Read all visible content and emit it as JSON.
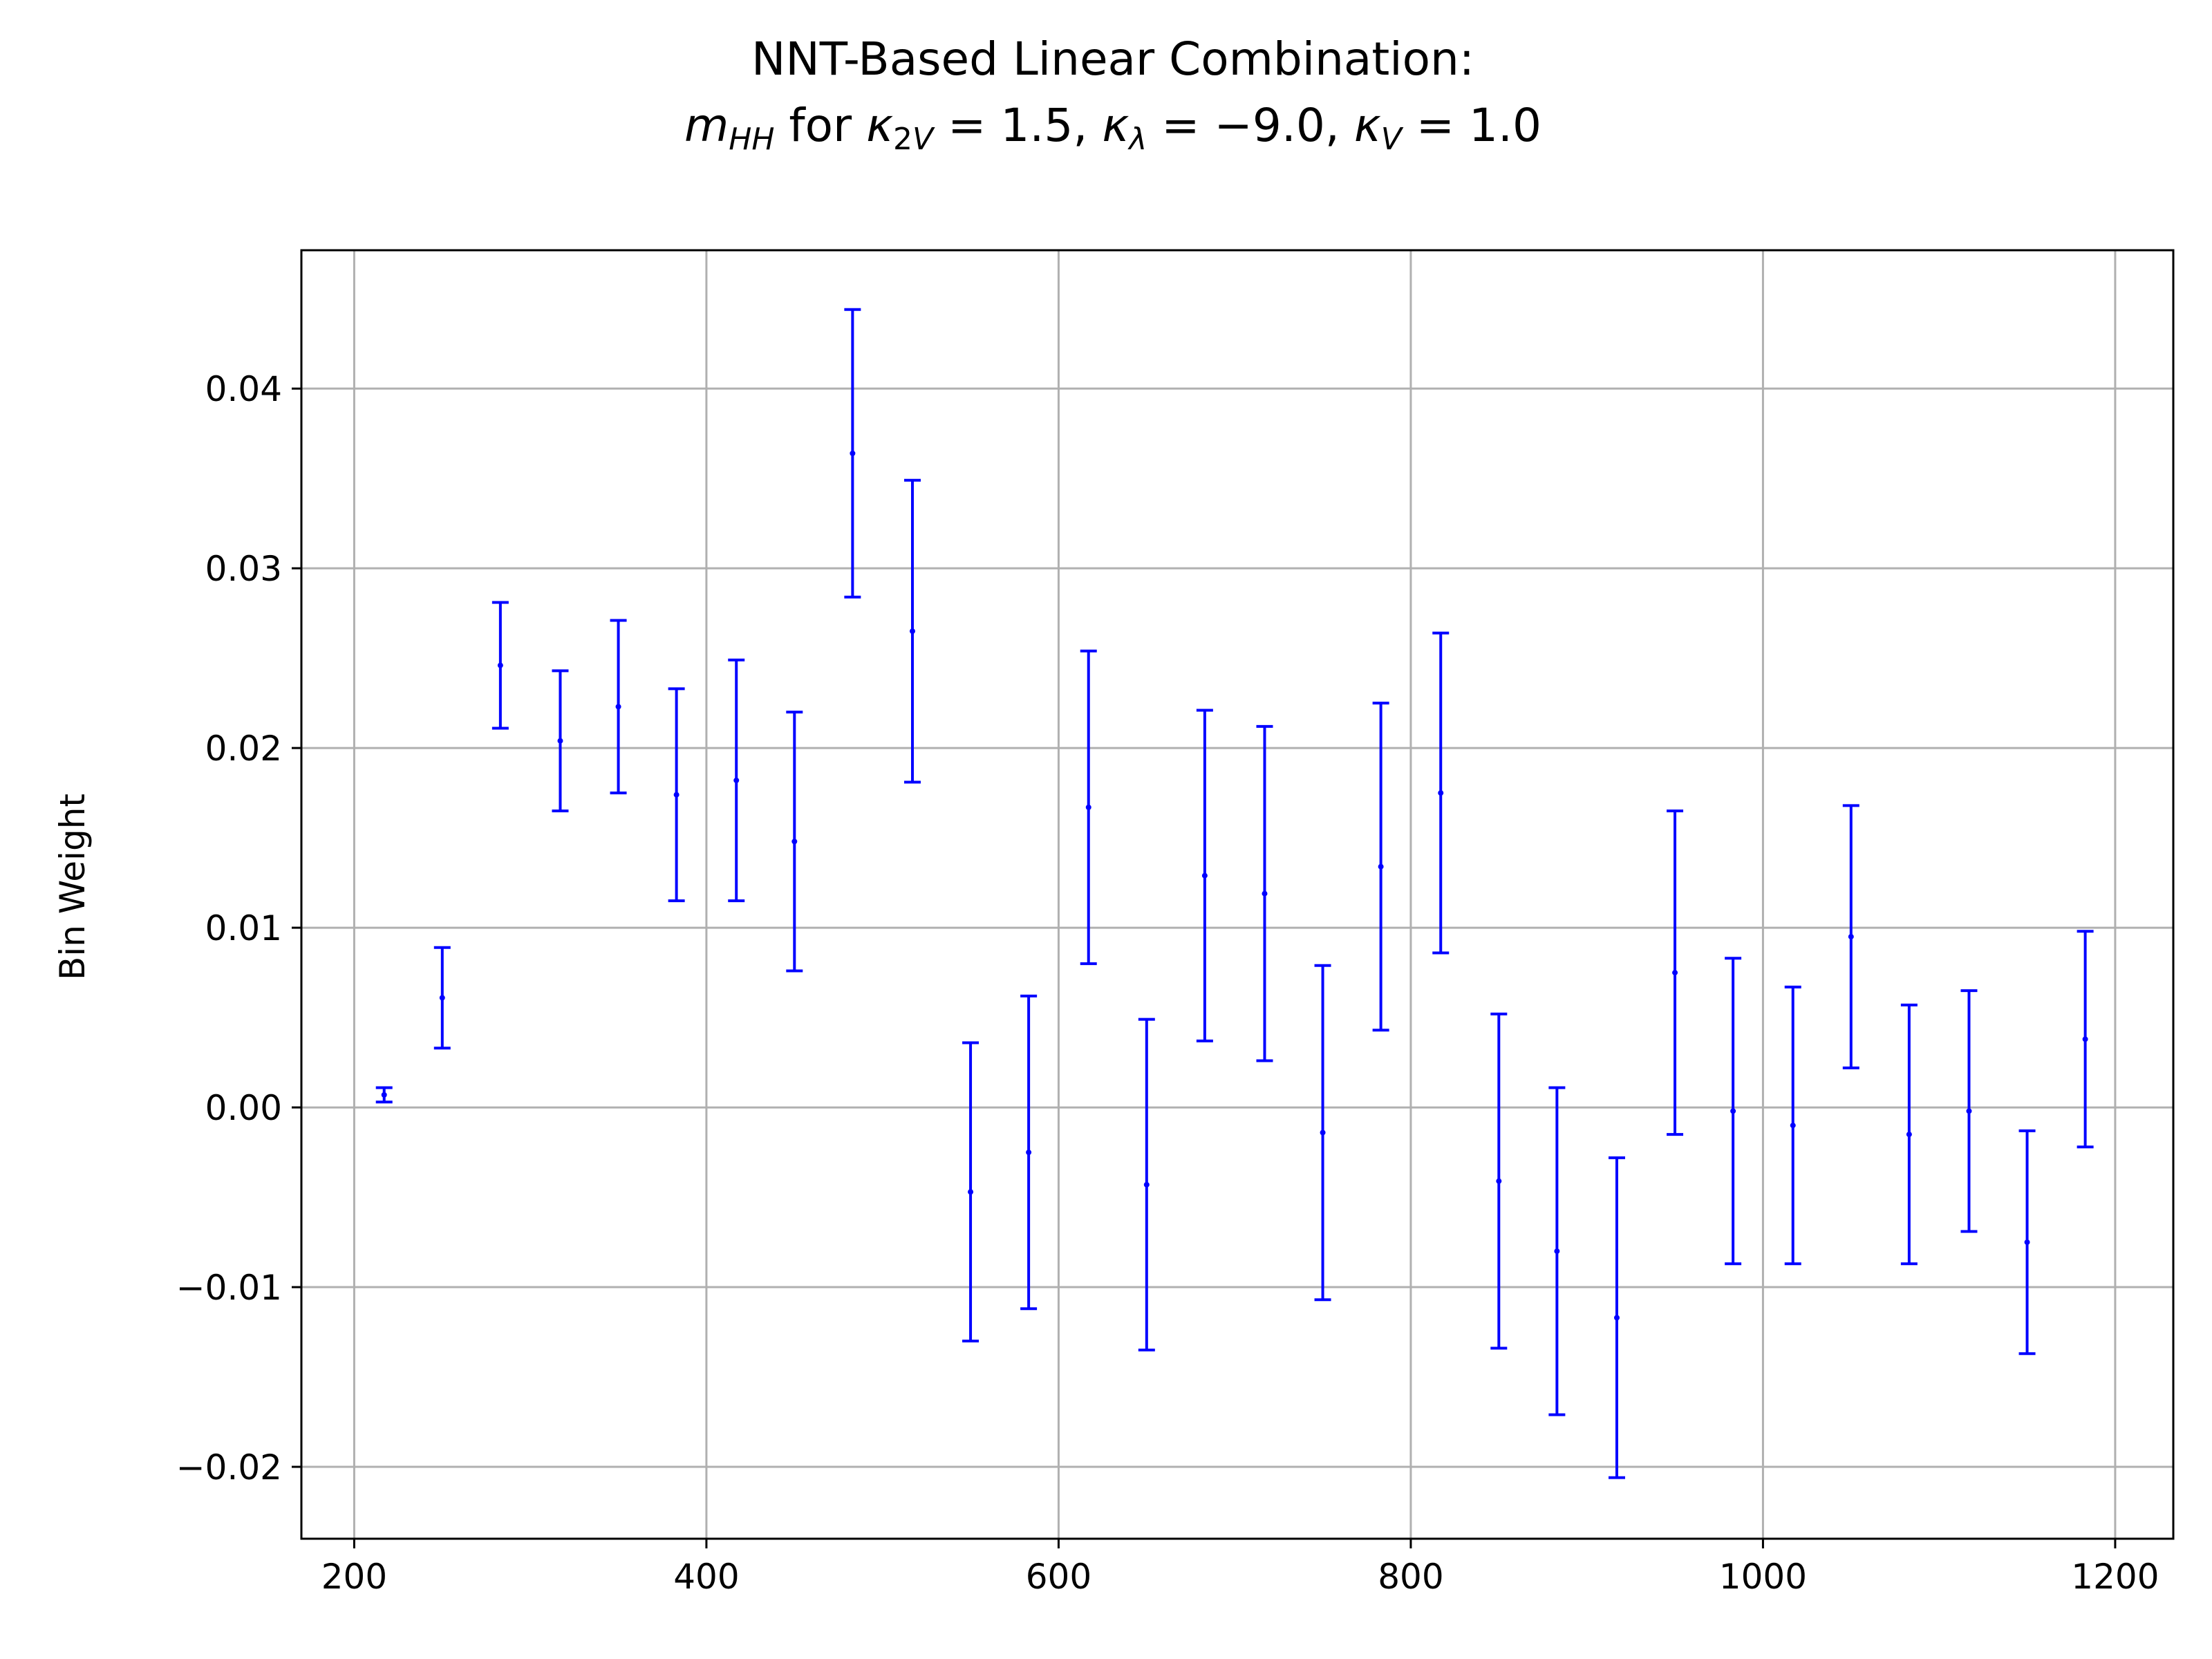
{
  "chart_data": {
    "type": "errorbar",
    "title": "NNT-Based Linear Combination:",
    "subtitle": "m_HH for κ_2V = 1.5, κ_λ = −9.0, κ_V = 1.0",
    "xlabel": "",
    "ylabel": "Bin Weight",
    "xlim": [
      170,
      1233
    ],
    "ylim": [
      -0.024,
      0.0477
    ],
    "xticks": [
      200,
      400,
      600,
      800,
      1000,
      1200
    ],
    "xtick_labels": [
      "200",
      "400",
      "600",
      "800",
      "1000",
      "1200"
    ],
    "yticks": [
      -0.02,
      -0.01,
      0.0,
      0.01,
      0.02,
      0.03,
      0.04
    ],
    "ytick_labels": [
      "−0.02",
      "−0.01",
      "0.00",
      "0.01",
      "0.02",
      "0.03",
      "0.04"
    ],
    "grid": true,
    "series": [
      {
        "color": "#0000ff",
        "x": [
          217,
          250,
          283,
          317,
          350,
          383,
          417,
          450,
          483,
          517,
          550,
          583,
          617,
          650,
          683,
          717,
          750,
          783,
          817,
          850,
          883,
          917,
          950,
          983,
          1017,
          1050,
          1083,
          1117,
          1150,
          1183
        ],
        "y": [
          0.0007,
          0.0061,
          0.0246,
          0.0204,
          0.0223,
          0.0174,
          0.0182,
          0.0148,
          0.0364,
          0.0265,
          -0.0047,
          -0.0025,
          0.0167,
          -0.0043,
          0.0129,
          0.0119,
          -0.0014,
          0.0134,
          0.0175,
          -0.0041,
          -0.008,
          -0.0117,
          0.0075,
          -0.0002,
          -0.001,
          0.0095,
          -0.0015,
          -0.0002,
          -0.0075,
          0.0038
        ],
        "err": [
          0.0004,
          0.0028,
          0.0035,
          0.0039,
          0.0048,
          0.0059,
          0.0067,
          0.0072,
          0.008,
          0.0084,
          0.0083,
          0.0087,
          0.0087,
          0.0092,
          0.0092,
          0.0093,
          0.0093,
          0.0091,
          0.0089,
          0.0093,
          0.0091,
          0.0089,
          0.009,
          0.0085,
          0.0077,
          0.0073,
          0.0072,
          0.0067,
          0.0062,
          0.006
        ]
      }
    ]
  }
}
